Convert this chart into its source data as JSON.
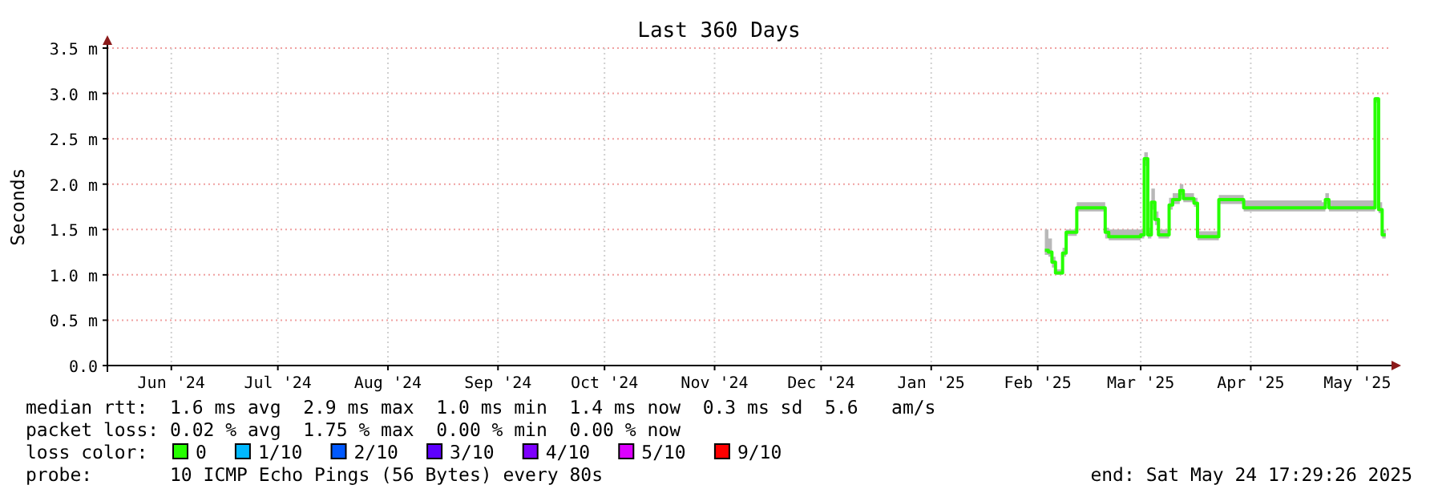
{
  "chart_data": {
    "type": "line",
    "title": "Last 360 Days",
    "ylabel": "Seconds",
    "legend_title": "loss color:",
    "legend": "bottom",
    "grid": true,
    "x": [
      "2025-02-17",
      "2025-02-18",
      "2025-02-19",
      "2025-02-20",
      "2025-02-21",
      "2025-02-22",
      "2025-02-23",
      "2025-02-25",
      "2025-02-26",
      "2025-03-05",
      "2025-03-06",
      "2025-03-07",
      "2025-03-16",
      "2025-03-17",
      "2025-03-18",
      "2025-03-19",
      "2025-03-20",
      "2025-03-21",
      "2025-03-23",
      "2025-03-24",
      "2025-03-25",
      "2025-03-27",
      "2025-03-28",
      "2025-03-31",
      "2025-04-01",
      "2025-04-06",
      "2025-04-07",
      "2025-04-13",
      "2025-04-14",
      "2025-05-06",
      "2025-05-07",
      "2025-05-08",
      "2025-05-20",
      "2025-05-21",
      "2025-05-22",
      "2025-05-23",
      "2025-05-24"
    ],
    "series": [
      {
        "name": "0",
        "color": "#26ff00",
        "values": [
          1.27,
          1.25,
          1.14,
          1.02,
          1.02,
          1.24,
          1.47,
          1.47,
          1.74,
          1.74,
          1.47,
          1.42,
          1.44,
          2.28,
          1.44,
          1.8,
          1.61,
          1.44,
          1.44,
          1.77,
          1.83,
          1.93,
          1.84,
          1.79,
          1.42,
          1.42,
          1.83,
          1.83,
          1.74,
          1.74,
          1.83,
          1.74,
          1.74,
          2.94,
          1.72,
          1.44,
          1.44
        ],
        "lower": [
          1.22,
          1.2,
          1.08,
          1.0,
          1.0,
          1.2,
          1.43,
          1.43,
          1.7,
          1.7,
          1.4,
          1.38,
          1.4,
          2.2,
          1.4,
          1.72,
          1.55,
          1.4,
          1.4,
          1.72,
          1.78,
          1.88,
          1.8,
          1.75,
          1.38,
          1.38,
          1.78,
          1.78,
          1.7,
          1.7,
          1.78,
          1.7,
          1.7,
          2.9,
          1.68,
          1.4,
          1.4
        ],
        "upper": [
          1.5,
          1.4,
          1.2,
          1.06,
          1.06,
          1.3,
          1.5,
          1.5,
          1.8,
          1.8,
          1.52,
          1.5,
          1.5,
          2.35,
          1.52,
          1.95,
          1.7,
          1.5,
          1.5,
          1.85,
          1.9,
          2.0,
          1.9,
          1.85,
          1.48,
          1.48,
          1.88,
          1.88,
          1.82,
          1.8,
          1.9,
          1.82,
          1.82,
          2.96,
          1.8,
          1.5,
          1.5
        ]
      },
      {
        "name": "1/10",
        "color": "#00b8ff",
        "values": [
          null,
          null,
          null,
          null,
          null,
          null,
          null,
          null,
          null,
          null,
          null,
          null,
          null,
          null,
          null,
          null,
          null,
          null,
          null,
          null,
          null,
          null,
          null,
          null,
          null,
          null,
          null,
          null,
          null,
          null,
          null,
          null,
          null,
          null,
          null,
          null,
          null
        ]
      },
      {
        "name": "2/10",
        "color": "#0059ff",
        "values": [
          null,
          null,
          null,
          null,
          null,
          null,
          null,
          null,
          null,
          null,
          null,
          null,
          null,
          null,
          null,
          null,
          null,
          null,
          null,
          null,
          null,
          null,
          null,
          null,
          null,
          null,
          null,
          null,
          null,
          null,
          null,
          null,
          null,
          null,
          null,
          null,
          null
        ]
      },
      {
        "name": "3/10",
        "color": "#5e00ff",
        "values": [
          null,
          null,
          null,
          null,
          null,
          null,
          null,
          null,
          null,
          null,
          null,
          null,
          null,
          null,
          null,
          null,
          null,
          null,
          null,
          null,
          null,
          null,
          null,
          null,
          null,
          null,
          null,
          null,
          null,
          null,
          null,
          null,
          null,
          null,
          null,
          null,
          null
        ]
      },
      {
        "name": "4/10",
        "color": "#7e00ff",
        "values": [
          null,
          null,
          null,
          null,
          null,
          null,
          null,
          null,
          null,
          null,
          null,
          null,
          null,
          null,
          null,
          null,
          null,
          null,
          null,
          null,
          null,
          null,
          null,
          null,
          null,
          null,
          null,
          null,
          null,
          null,
          null,
          null,
          null,
          null,
          null,
          null,
          null
        ]
      },
      {
        "name": "5/10",
        "color": "#dd00ff",
        "values": [
          null,
          null,
          null,
          null,
          null,
          null,
          null,
          null,
          null,
          null,
          null,
          null,
          null,
          null,
          null,
          null,
          null,
          null,
          null,
          null,
          null,
          null,
          null,
          null,
          null,
          null,
          null,
          null,
          null,
          null,
          null,
          null,
          null,
          null,
          null,
          null,
          null
        ]
      },
      {
        "name": "9/10",
        "color": "#ff0000",
        "values": [
          null,
          null,
          null,
          null,
          null,
          null,
          null,
          null,
          null,
          null,
          null,
          null,
          null,
          null,
          null,
          null,
          null,
          null,
          null,
          null,
          null,
          null,
          null,
          null,
          null,
          null,
          null,
          null,
          null,
          null,
          null,
          null,
          null,
          null,
          null,
          null,
          null
        ]
      }
    ],
    "xlim": [
      "2024-05-29",
      "2025-05-24T17:29"
    ],
    "xticks": [
      {
        "value": "2024-06-16",
        "label": "Jun '24"
      },
      {
        "value": "2024-07-16",
        "label": "Jul '24"
      },
      {
        "value": "2024-08-16",
        "label": "Aug '24"
      },
      {
        "value": "2024-09-16",
        "label": "Sep '24"
      },
      {
        "value": "2024-10-16",
        "label": "Oct '24"
      },
      {
        "value": "2024-11-16",
        "label": "Nov '24"
      },
      {
        "value": "2024-12-16",
        "label": "Dec '24"
      },
      {
        "value": "2025-01-16",
        "label": "Jan '25"
      },
      {
        "value": "2025-02-15",
        "label": "Feb '25"
      },
      {
        "value": "2025-03-16",
        "label": "Mar '25"
      },
      {
        "value": "2025-04-16",
        "label": "Apr '25"
      },
      {
        "value": "2025-05-16",
        "label": "May '25"
      }
    ],
    "ylim": [
      0,
      3.5
    ],
    "yticks": [
      {
        "value": 0,
        "label": "0.0"
      },
      {
        "value": 0.5,
        "label": "0.5 m"
      },
      {
        "value": 1,
        "label": "1.0 m"
      },
      {
        "value": 1.5,
        "label": "1.5 m"
      },
      {
        "value": 2,
        "label": "2.0 m"
      },
      {
        "value": 2.5,
        "label": "2.5 m"
      },
      {
        "value": 3,
        "label": "3.0 m"
      },
      {
        "value": 3.5,
        "label": "3.5 m"
      }
    ],
    "annotations": [
      "median rtt:  1.6 ms avg  2.9 ms max  1.0 ms min  1.4 ms now  0.3 ms sd  5.6   am/s",
      "packet loss: 0.02 % avg  1.75 % max  0.00 % min  0.00 % now",
      "probe:       10 ICMP Echo Pings (56 Bytes) every 80s",
      "end: Sat May 24 17:29:26 2025"
    ]
  }
}
